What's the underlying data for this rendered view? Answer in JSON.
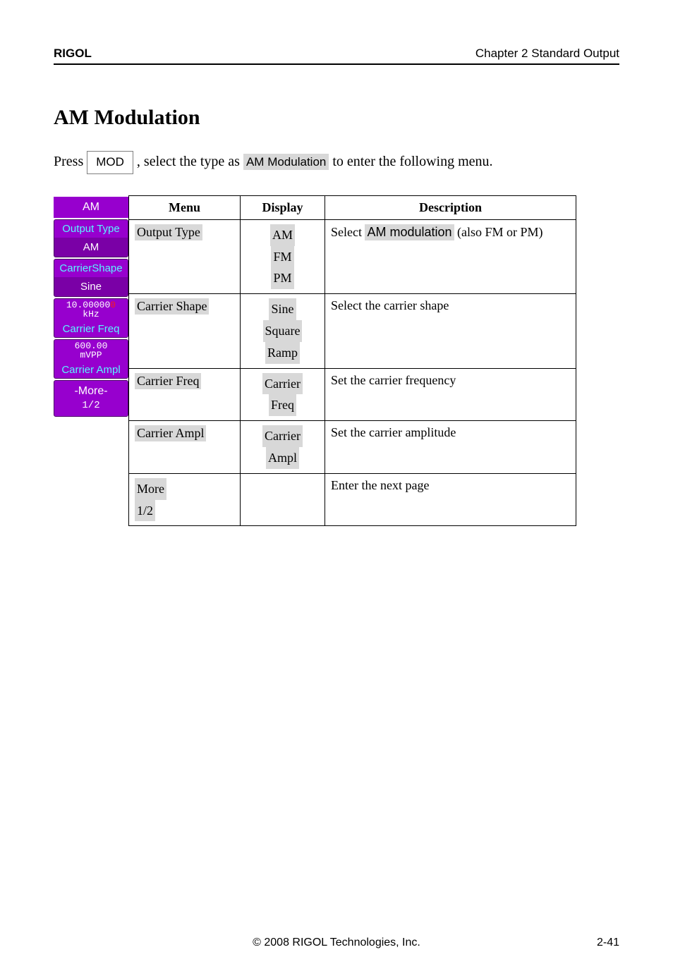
{
  "header": {
    "left": "RIGOL",
    "right": "Chapter 2 Standard Output"
  },
  "section_title": "AM Modulation",
  "intro": {
    "prefix": "Press ",
    "key": "MOD",
    "mid": ", select the type as ",
    "soft": "AM Modulation",
    "suffix": " to enter the following menu."
  },
  "softkeys": {
    "title": "AM",
    "pair1_top": "Output Type",
    "pair1_bot": "AM",
    "pair2_top": "CarrierShape",
    "pair2_bot": "Sine",
    "val1_num": "10.00000",
    "val1_red": "0",
    "val1_unit": "kHz",
    "val1_bot": "Carrier Freq",
    "val2_top_a": "600.00",
    "val2_top_b": "mVPP",
    "val2_bot": "Carrier Ampl",
    "more_a": "-More-",
    "more_b": "1/2"
  },
  "table": {
    "headers": [
      "Menu",
      "Display",
      "Description"
    ],
    "row1": {
      "menu": "Output Type",
      "opts": [
        "AM",
        "FM",
        "PM"
      ],
      "desc_a": "Select ",
      "desc_hi": "AM modulation",
      "desc_b": " (also FM or PM)"
    },
    "row2": {
      "menu": "Carrier Shape",
      "opts": [
        "Sine",
        "Square",
        "Ramp"
      ],
      "desc": "Select the carrier shape"
    },
    "row3": {
      "menu": "Carrier Freq",
      "opts": [
        "Carrier",
        "Freq"
      ],
      "desc": "Set the carrier frequency"
    },
    "row4": {
      "menu": "Carrier Ampl",
      "opts": [
        "Carrier",
        "Ampl"
      ],
      "desc": "Set the carrier amplitude"
    },
    "row5": {
      "menu": "More 1/2",
      "desc": "Enter the next page"
    }
  },
  "footer": {
    "center": "© 2008 RIGOL Technologies, Inc.",
    "right": "2-41"
  }
}
